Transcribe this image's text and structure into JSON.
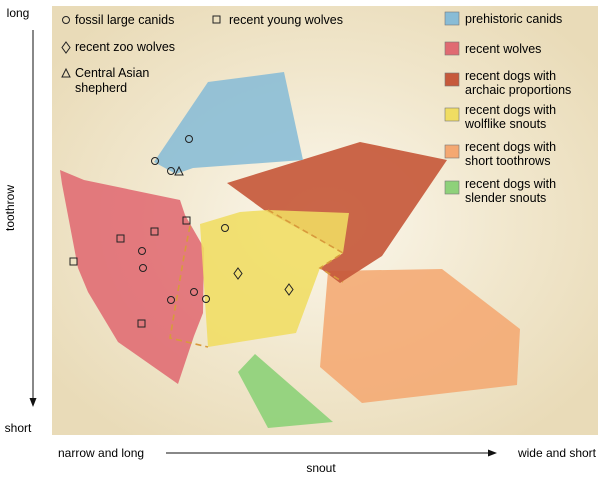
{
  "colors": {
    "prehistoric_canids": "#88bcd6",
    "recent_wolves": "#e06a72",
    "archaic_proportions": "#c6593b",
    "wolflike_snouts": "#f0dd62",
    "short_toothrows": "#f4a872",
    "slender_snouts": "#8ed17a",
    "plot_background": "#f4ecd6"
  },
  "axes": {
    "y_title": "toothrow",
    "y_top": "long",
    "y_bottom": "short",
    "x_title": "snout",
    "x_left": "narrow and long",
    "x_right": "wide and short"
  },
  "symbol_legend": [
    {
      "symbol": "circle",
      "label": "fossil large canids"
    },
    {
      "symbol": "square",
      "label": "recent young wolves"
    },
    {
      "symbol": "diamond",
      "label": "recent zoo wolves"
    },
    {
      "symbol": "triangle",
      "label_line1": "Central Asian",
      "label_line2": "shepherd"
    }
  ],
  "group_legend": [
    {
      "key": "prehistoric_canids",
      "label_line1": "prehistoric canids",
      "label_line2": ""
    },
    {
      "key": "recent_wolves",
      "label_line1": "recent wolves",
      "label_line2": ""
    },
    {
      "key": "archaic_proportions",
      "label_line1": "recent dogs with",
      "label_line2": "archaic proportions"
    },
    {
      "key": "wolflike_snouts",
      "label_line1": "recent dogs with",
      "label_line2": "wolflike snouts"
    },
    {
      "key": "short_toothrows",
      "label_line1": "recent dogs with",
      "label_line2": "short toothrows"
    },
    {
      "key": "slender_snouts",
      "label_line1": "recent dogs with",
      "label_line2": "slender snouts"
    }
  ]
}
